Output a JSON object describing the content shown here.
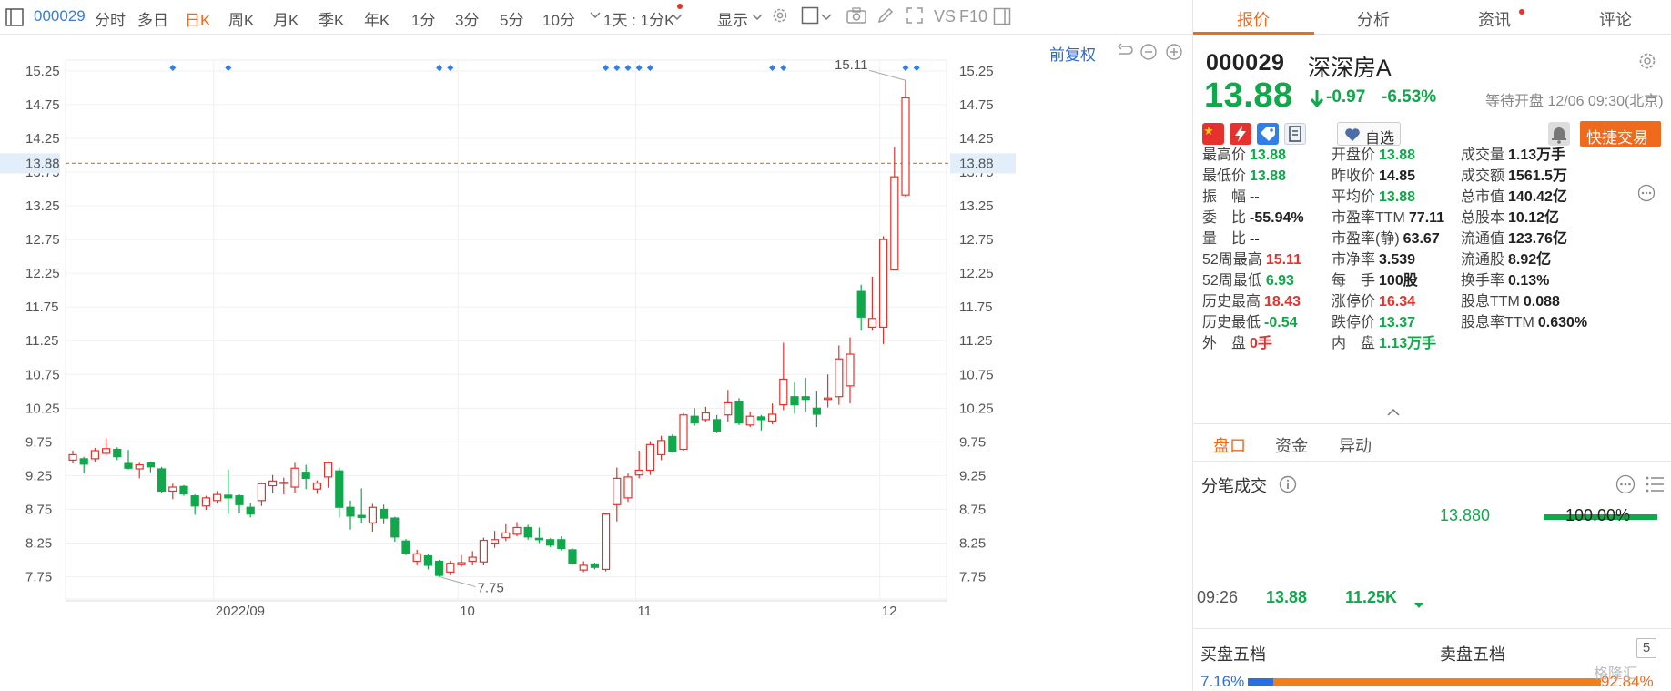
{
  "toolbar": {
    "code": "000029",
    "periods": [
      "分时",
      "多日",
      "日K",
      "周K",
      "月K",
      "季K",
      "年K",
      "1分",
      "3分",
      "5分",
      "10分"
    ],
    "active_period": "日K",
    "interval_label": "1天 : 1分K",
    "display_label": "显示",
    "vs_label": "VS",
    "f10_label": "F10"
  },
  "chart": {
    "adjust_label": "前复权",
    "current_price_label": "13.88",
    "y_ticks": [
      "15.25",
      "14.75",
      "14.25",
      "13.75",
      "13.25",
      "12.75",
      "12.25",
      "11.75",
      "11.25",
      "10.75",
      "10.25",
      "9.75",
      "9.25",
      "8.75",
      "8.25",
      "7.75"
    ],
    "x_labels": [
      "2022/09",
      "10",
      "11",
      "12"
    ],
    "max_label": "15.11",
    "min_label": "7.75",
    "colors": {
      "up": "#e5322e",
      "down": "#10a84a",
      "marker": "#2f7fe6",
      "current_line": "#f07e1d"
    }
  },
  "chart_data": {
    "type": "candlestick",
    "title": "",
    "ylim": [
      7.3,
      15.6
    ],
    "x_labels": [
      "2022/09",
      "10",
      "11",
      "12"
    ],
    "price_line": 13.88,
    "max_annotation": 15.11,
    "min_annotation": 7.75,
    "candles": [
      {
        "o": 9.48,
        "c": 9.56,
        "h": 9.62,
        "l": 9.43
      },
      {
        "o": 9.5,
        "c": 9.42,
        "h": 9.53,
        "l": 9.28
      },
      {
        "o": 9.5,
        "c": 9.62,
        "h": 9.66,
        "l": 9.46
      },
      {
        "o": 9.58,
        "c": 9.65,
        "h": 9.81,
        "l": 9.55
      },
      {
        "o": 9.64,
        "c": 9.53,
        "h": 9.67,
        "l": 9.48
      },
      {
        "o": 9.43,
        "c": 9.36,
        "h": 9.63,
        "l": 9.34
      },
      {
        "o": 9.35,
        "c": 9.41,
        "h": 9.44,
        "l": 9.21
      },
      {
        "o": 9.44,
        "c": 9.38,
        "h": 9.46,
        "l": 9.3
      },
      {
        "o": 9.35,
        "c": 9.02,
        "h": 9.38,
        "l": 8.99
      },
      {
        "o": 9.02,
        "c": 9.08,
        "h": 9.13,
        "l": 8.9
      },
      {
        "o": 9.09,
        "c": 8.98,
        "h": 9.11,
        "l": 8.95
      },
      {
        "o": 8.95,
        "c": 8.8,
        "h": 8.97,
        "l": 8.67
      },
      {
        "o": 8.8,
        "c": 8.92,
        "h": 8.95,
        "l": 8.74
      },
      {
        "o": 8.88,
        "c": 8.97,
        "h": 9.02,
        "l": 8.84
      },
      {
        "o": 8.96,
        "c": 8.92,
        "h": 9.34,
        "l": 8.68
      },
      {
        "o": 8.95,
        "c": 8.82,
        "h": 8.97,
        "l": 8.69
      },
      {
        "o": 8.78,
        "c": 8.68,
        "h": 8.84,
        "l": 8.63
      },
      {
        "o": 8.88,
        "c": 9.13,
        "h": 9.15,
        "l": 8.8
      },
      {
        "o": 9.1,
        "c": 9.17,
        "h": 9.26,
        "l": 8.99
      },
      {
        "o": 9.15,
        "c": 9.15,
        "h": 9.22,
        "l": 8.97
      },
      {
        "o": 9.08,
        "c": 9.36,
        "h": 9.44,
        "l": 9.0
      },
      {
        "o": 9.3,
        "c": 9.21,
        "h": 9.41,
        "l": 9.05
      },
      {
        "o": 9.05,
        "c": 9.14,
        "h": 9.18,
        "l": 8.98
      },
      {
        "o": 9.23,
        "c": 9.44,
        "h": 9.46,
        "l": 9.07
      },
      {
        "o": 9.32,
        "c": 8.78,
        "h": 9.37,
        "l": 8.63
      },
      {
        "o": 8.78,
        "c": 8.65,
        "h": 8.88,
        "l": 8.45
      },
      {
        "o": 8.66,
        "c": 8.63,
        "h": 9.06,
        "l": 8.54
      },
      {
        "o": 8.55,
        "c": 8.78,
        "h": 8.83,
        "l": 8.42
      },
      {
        "o": 8.75,
        "c": 8.62,
        "h": 8.82,
        "l": 8.53
      },
      {
        "o": 8.62,
        "c": 8.34,
        "h": 8.64,
        "l": 8.27
      },
      {
        "o": 8.28,
        "c": 8.1,
        "h": 8.31,
        "l": 8.07
      },
      {
        "o": 7.98,
        "c": 8.09,
        "h": 8.15,
        "l": 7.92
      },
      {
        "o": 8.06,
        "c": 7.92,
        "h": 8.08,
        "l": 7.86
      },
      {
        "o": 7.98,
        "c": 7.77,
        "h": 8.0,
        "l": 7.75
      },
      {
        "o": 7.82,
        "c": 7.95,
        "h": 7.99,
        "l": 7.77
      },
      {
        "o": 7.93,
        "c": 7.96,
        "h": 8.07,
        "l": 7.9
      },
      {
        "o": 7.98,
        "c": 8.04,
        "h": 8.13,
        "l": 7.92
      },
      {
        "o": 7.97,
        "c": 8.29,
        "h": 8.33,
        "l": 7.92
      },
      {
        "o": 8.25,
        "c": 8.3,
        "h": 8.43,
        "l": 8.18
      },
      {
        "o": 8.33,
        "c": 8.4,
        "h": 8.53,
        "l": 8.28
      },
      {
        "o": 8.38,
        "c": 8.48,
        "h": 8.56,
        "l": 8.35
      },
      {
        "o": 8.48,
        "c": 8.34,
        "h": 8.52,
        "l": 8.3
      },
      {
        "o": 8.32,
        "c": 8.3,
        "h": 8.48,
        "l": 8.25
      },
      {
        "o": 8.3,
        "c": 8.22,
        "h": 8.32,
        "l": 8.19
      },
      {
        "o": 8.3,
        "c": 8.17,
        "h": 8.35,
        "l": 8.14
      },
      {
        "o": 8.15,
        "c": 7.95,
        "h": 8.17,
        "l": 7.93
      },
      {
        "o": 7.85,
        "c": 7.92,
        "h": 7.98,
        "l": 7.82
      },
      {
        "o": 7.94,
        "c": 7.89,
        "h": 7.96,
        "l": 7.86
      },
      {
        "o": 7.86,
        "c": 8.68,
        "h": 8.7,
        "l": 7.83
      },
      {
        "o": 8.82,
        "c": 9.21,
        "h": 9.37,
        "l": 8.57
      },
      {
        "o": 8.92,
        "c": 9.23,
        "h": 9.28,
        "l": 8.86
      },
      {
        "o": 9.26,
        "c": 9.33,
        "h": 9.62,
        "l": 9.21
      },
      {
        "o": 9.33,
        "c": 9.71,
        "h": 9.76,
        "l": 9.26
      },
      {
        "o": 9.56,
        "c": 9.77,
        "h": 9.84,
        "l": 9.48
      },
      {
        "o": 9.83,
        "c": 9.61,
        "h": 9.86,
        "l": 9.59
      },
      {
        "o": 9.64,
        "c": 10.15,
        "h": 10.18,
        "l": 9.62
      },
      {
        "o": 10.13,
        "c": 10.03,
        "h": 10.25,
        "l": 9.99
      },
      {
        "o": 10.08,
        "c": 10.18,
        "h": 10.27,
        "l": 10.04
      },
      {
        "o": 10.08,
        "c": 9.91,
        "h": 10.15,
        "l": 9.88
      },
      {
        "o": 10.15,
        "c": 10.33,
        "h": 10.52,
        "l": 10.05
      },
      {
        "o": 10.35,
        "c": 10.03,
        "h": 10.4,
        "l": 10.0
      },
      {
        "o": 10.0,
        "c": 10.13,
        "h": 10.2,
        "l": 9.97
      },
      {
        "o": 10.12,
        "c": 10.08,
        "h": 10.15,
        "l": 9.92
      },
      {
        "o": 10.06,
        "c": 10.16,
        "h": 10.32,
        "l": 10.01
      },
      {
        "o": 10.3,
        "c": 10.68,
        "h": 11.22,
        "l": 10.22
      },
      {
        "o": 10.42,
        "c": 10.3,
        "h": 10.63,
        "l": 10.17
      },
      {
        "o": 10.42,
        "c": 10.38,
        "h": 10.7,
        "l": 10.2
      },
      {
        "o": 10.25,
        "c": 10.16,
        "h": 10.5,
        "l": 9.97
      },
      {
        "o": 10.38,
        "c": 10.4,
        "h": 10.75,
        "l": 10.26
      },
      {
        "o": 10.42,
        "c": 10.98,
        "h": 11.18,
        "l": 10.3
      },
      {
        "o": 10.58,
        "c": 11.05,
        "h": 11.3,
        "l": 10.32
      },
      {
        "o": 11.98,
        "c": 11.6,
        "h": 12.08,
        "l": 11.4
      },
      {
        "o": 11.45,
        "c": 11.58,
        "h": 12.2,
        "l": 11.4
      },
      {
        "o": 11.45,
        "c": 12.75,
        "h": 12.8,
        "l": 11.2
      },
      {
        "o": 12.3,
        "c": 13.68,
        "h": 14.12,
        "l": 12.38
      },
      {
        "o": 13.41,
        "c": 14.85,
        "h": 15.11,
        "l": 13.38
      }
    ],
    "marker_candles": [
      9,
      14,
      33,
      34,
      48,
      49,
      50,
      51,
      52,
      63,
      64,
      75,
      76
    ]
  },
  "panel": {
    "tabs": [
      "报价",
      "分析",
      "资讯",
      "评论"
    ],
    "active_tab": "报价",
    "code": "000029",
    "name": "深深房A",
    "price": "13.88",
    "change": "-0.97",
    "change_pct": "-6.53%",
    "status": "等待开盘 12/06 09:30(北京)",
    "watchlist_label": "自选",
    "quick_trade_label": "快捷交易",
    "quote_col1": [
      {
        "k": "最高价",
        "v": "13.88",
        "c": "green"
      },
      {
        "k": "最低价",
        "v": "13.88",
        "c": "green"
      },
      {
        "k": "振　幅",
        "v": "--",
        "c": ""
      },
      {
        "k": "委　比",
        "v": "-55.94%",
        "c": ""
      },
      {
        "k": "量　比",
        "v": "--",
        "c": ""
      },
      {
        "k": "52周最高",
        "v": "15.11",
        "c": "red"
      },
      {
        "k": "52周最低",
        "v": "6.93",
        "c": "green"
      },
      {
        "k": "历史最高",
        "v": "18.43",
        "c": "red"
      },
      {
        "k": "历史最低",
        "v": "-0.54",
        "c": "green"
      },
      {
        "k": "外　盘",
        "v": "0手",
        "c": "red"
      }
    ],
    "quote_col2": [
      {
        "k": "开盘价",
        "v": "13.88",
        "c": "green"
      },
      {
        "k": "昨收价",
        "v": "14.85",
        "c": ""
      },
      {
        "k": "平均价",
        "v": "13.88",
        "c": "green"
      },
      {
        "k": "市盈率TTM",
        "v": "77.11",
        "c": ""
      },
      {
        "k": "市盈率(静)",
        "v": "63.67",
        "c": ""
      },
      {
        "k": "市净率",
        "v": "3.539",
        "c": ""
      },
      {
        "k": "每　手",
        "v": "100股",
        "c": ""
      },
      {
        "k": "涨停价",
        "v": "16.34",
        "c": "red"
      },
      {
        "k": "跌停价",
        "v": "13.37",
        "c": "green"
      },
      {
        "k": "内　盘",
        "v": "1.13万手",
        "c": "green"
      }
    ],
    "quote_col3": [
      {
        "k": "成交量",
        "v": "1.13万手",
        "c": ""
      },
      {
        "k": "成交额",
        "v": "1561.5万",
        "c": ""
      },
      {
        "k": "总市值",
        "v": "140.42亿",
        "c": ""
      },
      {
        "k": "总股本",
        "v": "10.12亿",
        "c": ""
      },
      {
        "k": "流通值",
        "v": "123.76亿",
        "c": ""
      },
      {
        "k": "流通股",
        "v": "8.92亿",
        "c": ""
      },
      {
        "k": "换手率",
        "v": "0.13%",
        "c": ""
      },
      {
        "k": "股息TTM",
        "v": "0.088",
        "c": ""
      },
      {
        "k": "股息率TTM",
        "v": "0.630%",
        "c": ""
      }
    ],
    "section_tabs": [
      "盘口",
      "资金",
      "异动"
    ],
    "active_section_tab": "盘口",
    "tick_title": "分笔成交",
    "tick_price": "13.880",
    "tick_pct": "100.00%",
    "trade": {
      "time": "09:26",
      "price": "13.88",
      "volume": "11.25K"
    },
    "orderbook": {
      "buy_title": "买盘五档",
      "sell_title": "卖盘五档",
      "levels": "5",
      "buy_pct": "7.16%",
      "sell_pct": "92.84%"
    },
    "watermark": "格隆汇"
  }
}
